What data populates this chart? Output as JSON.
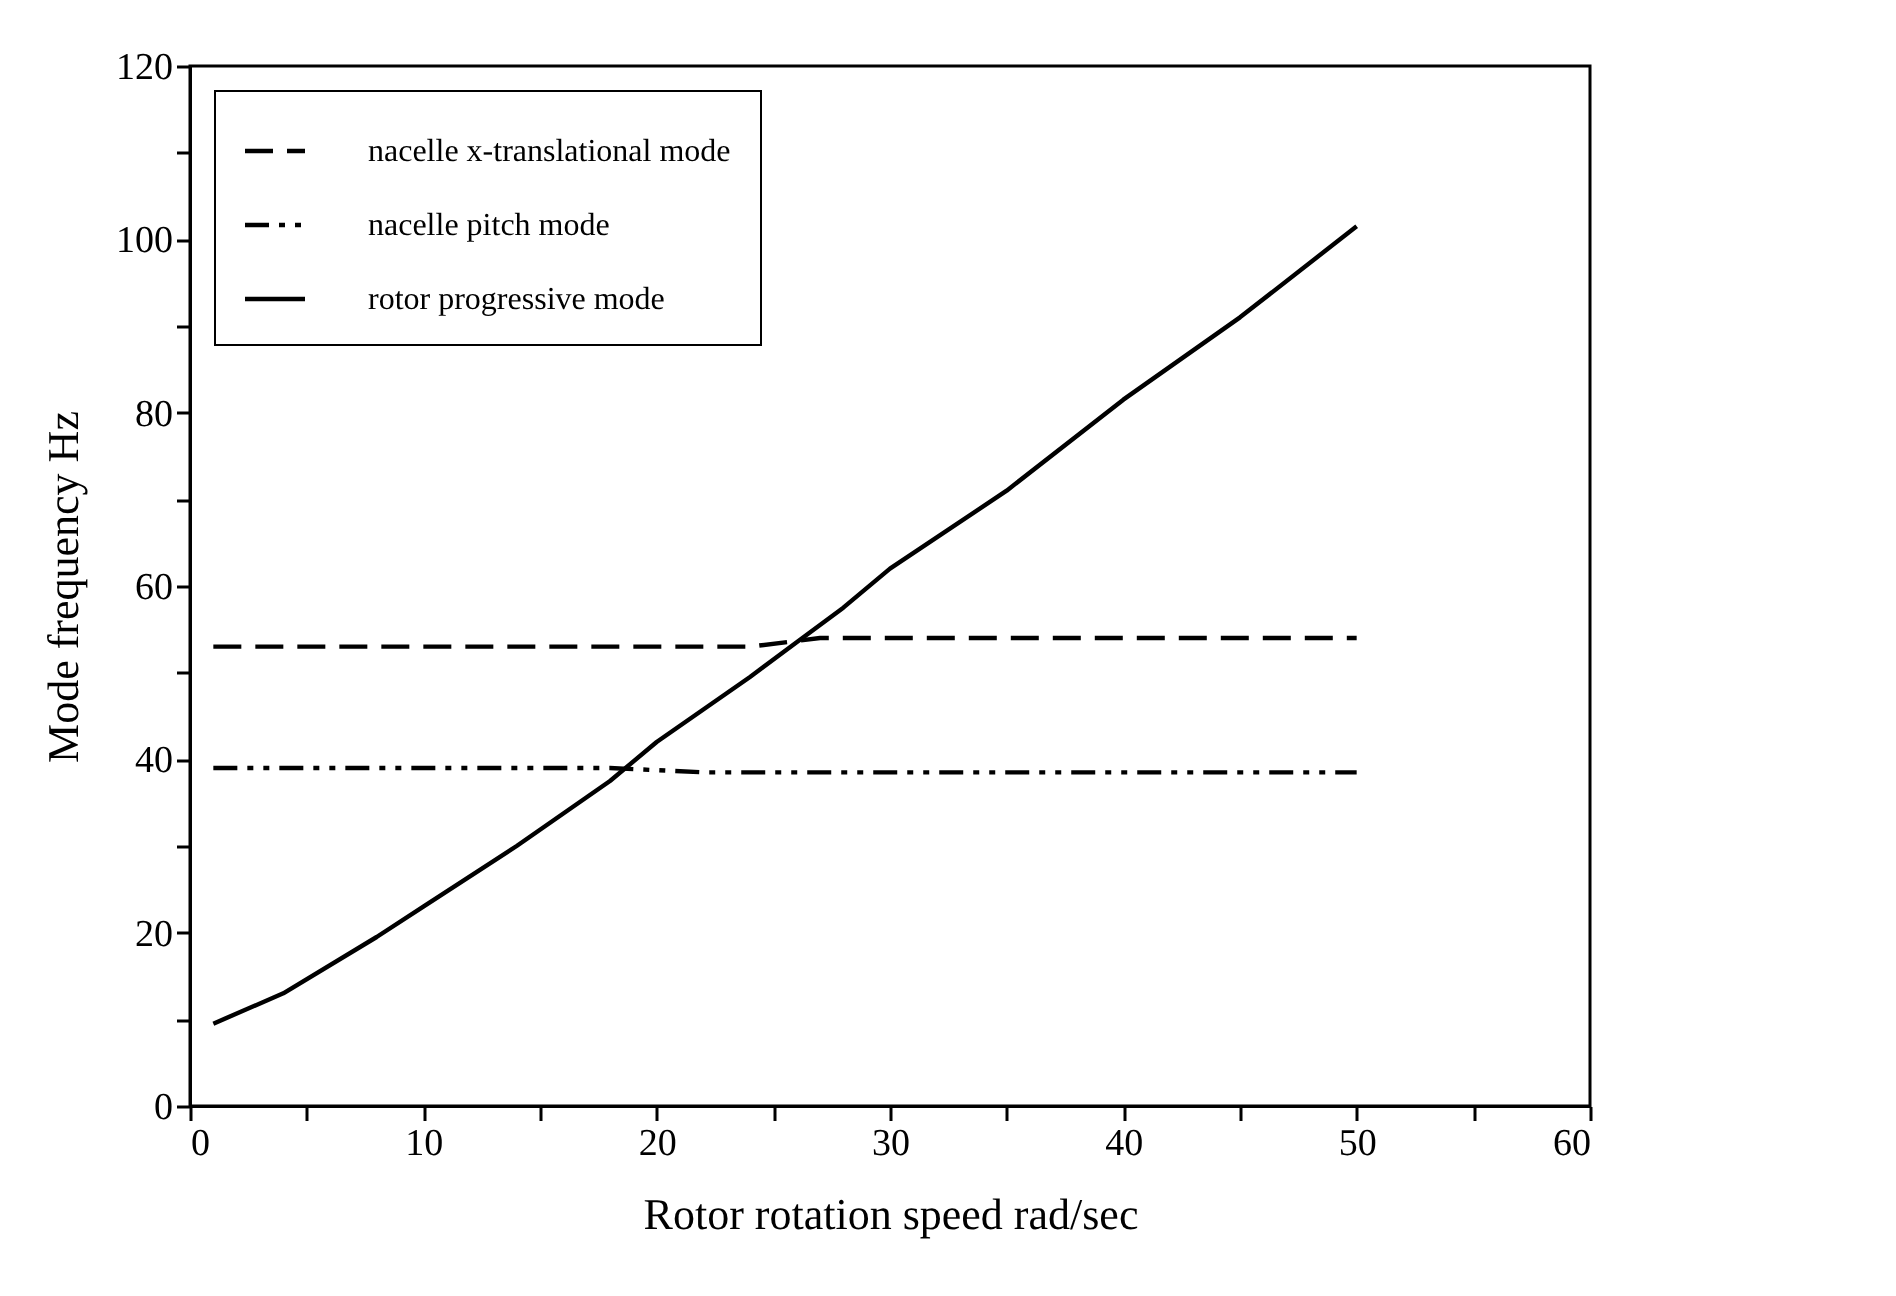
{
  "chart_data": {
    "type": "line",
    "xlabel": "Rotor rotation speed rad/sec",
    "ylabel": "Mode frequency Hz",
    "xlim": [
      0,
      60
    ],
    "ylim": [
      0,
      120
    ],
    "xticks": [
      0,
      {
        "value": 5,
        "label": null
      },
      10,
      {
        "value": 15,
        "label": null
      },
      20,
      {
        "value": 25,
        "label": null
      },
      30,
      {
        "value": 35,
        "label": null
      },
      40,
      {
        "value": 45,
        "label": null
      },
      50,
      {
        "value": 55,
        "label": null
      },
      60
    ],
    "yticks": [
      0,
      {
        "value": 10,
        "label": null
      },
      20,
      {
        "value": 30,
        "label": null
      },
      40,
      {
        "value": 50,
        "label": null
      },
      60,
      {
        "value": 70,
        "label": null
      },
      80,
      {
        "value": 90,
        "label": null
      },
      100,
      {
        "value": 110,
        "label": null
      },
      120
    ],
    "legend": "top left",
    "grid": false,
    "series": [
      {
        "name": "nacelle x-translational mode",
        "color": "#000000",
        "line_style": "dashed",
        "x": [
          1,
          24,
          27,
          50
        ],
        "values": [
          53,
          53,
          54,
          54
        ]
      },
      {
        "name": "nacelle pitch mode",
        "color": "#000000",
        "line_style": "dashdot",
        "x": [
          1,
          18,
          22,
          50
        ],
        "values": [
          39,
          39,
          38.5,
          38.5
        ]
      },
      {
        "name": "rotor progressive mode",
        "color": "#000000",
        "line_style": "solid",
        "x": [
          1,
          4,
          8,
          10,
          14,
          18,
          20,
          24,
          26,
          28,
          30,
          35,
          40,
          45,
          50
        ],
        "values": [
          9.5,
          13,
          19.5,
          23,
          30,
          37.5,
          42,
          49.5,
          53.5,
          57.5,
          62,
          71,
          81.5,
          91,
          101.5
        ]
      }
    ]
  }
}
